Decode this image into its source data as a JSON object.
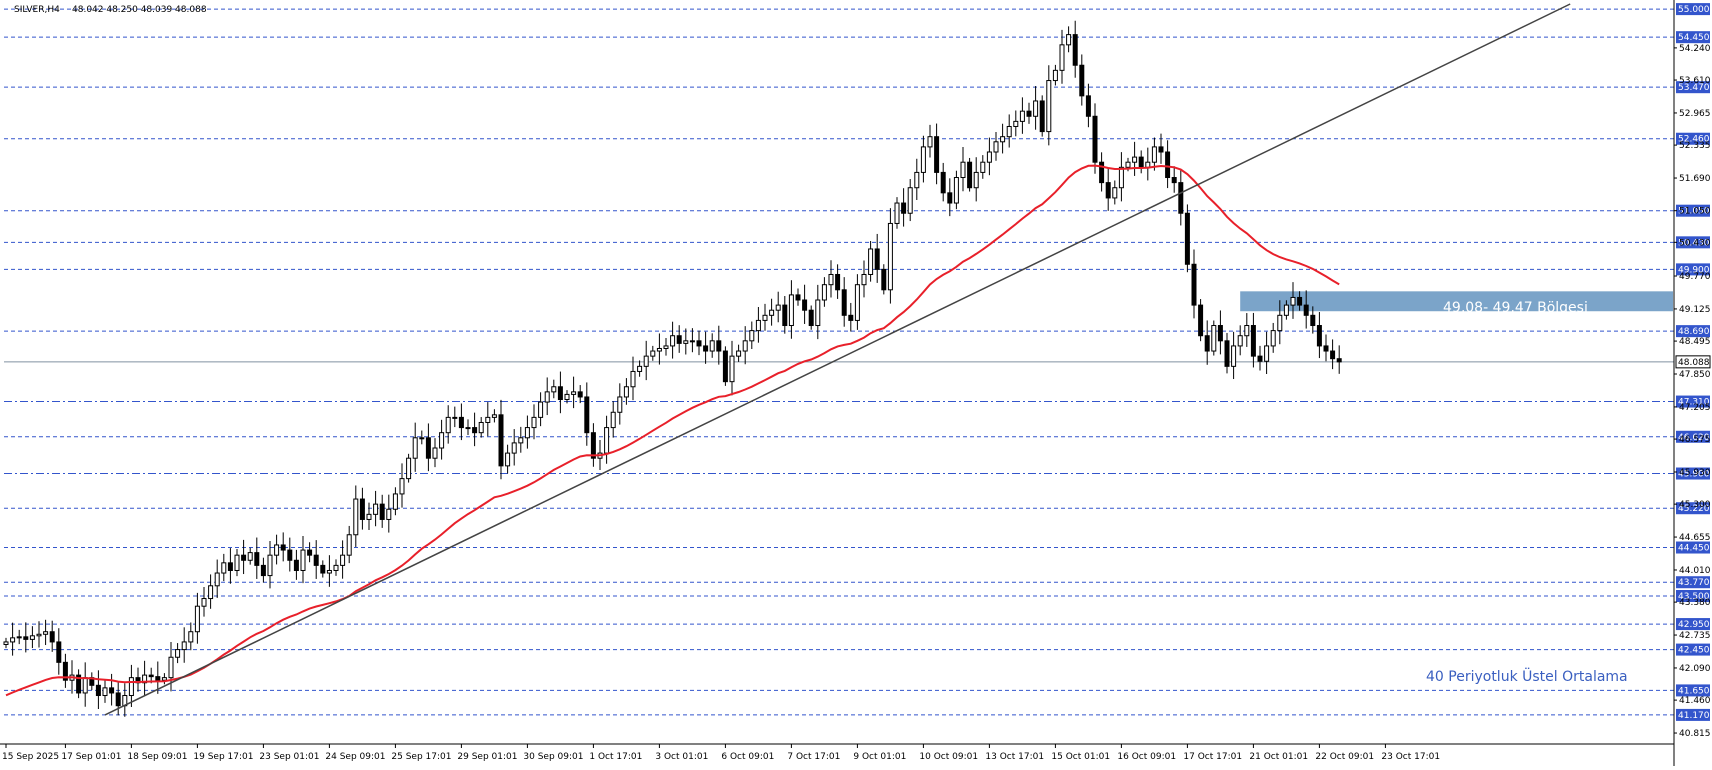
{
  "header": {
    "symbol_line": "SILVER,H4",
    "ohlc": "48.042 48.250 48.039 48.088"
  },
  "annotations": {
    "zone_label": "49,08- 49,47 Bölgesi",
    "ema_label": "40 Periyotluk Üstel Ortalama"
  },
  "colors": {
    "background": "#ffffff",
    "grid": "#3355cc",
    "tag_fill": "#3355cc",
    "ema": "#e8202a",
    "trendline": "#444444",
    "zone_fill": "#7ba4c9",
    "annotation_text": "#3a5fc0",
    "price_line": "#8090a0"
  },
  "chart_data": {
    "type": "candlestick",
    "symbol": "SILVER",
    "timeframe": "H4",
    "ylim": [
      40.6,
      55.1
    ],
    "current_price": 48.088,
    "y_ticks": [
      "54.240",
      "53.610",
      "52.965",
      "52.335",
      "51.690",
      "51.050",
      "50.430",
      "49.770",
      "49.125",
      "48.495",
      "47.850",
      "47.205",
      "46.575",
      "45.930",
      "45.300",
      "44.655",
      "44.010",
      "43.380",
      "42.735",
      "42.090",
      "41.460",
      "40.815"
    ],
    "levels": [
      {
        "value": 55.0,
        "label": "55.000",
        "style": "dashed"
      },
      {
        "value": 54.45,
        "label": "54.450",
        "style": "dashed"
      },
      {
        "value": 53.47,
        "label": "53.470",
        "style": "dashed"
      },
      {
        "value": 52.46,
        "label": "52.460",
        "style": "dashed"
      },
      {
        "value": 51.05,
        "label": "51.050",
        "style": "dashed"
      },
      {
        "value": 50.43,
        "label": "50.430",
        "style": "dashed"
      },
      {
        "value": 49.9,
        "label": "49.900",
        "style": "dashed"
      },
      {
        "value": 48.69,
        "label": "48.690",
        "style": "dashed"
      },
      {
        "value": 47.31,
        "label": "47.310",
        "style": "dashdot"
      },
      {
        "value": 46.62,
        "label": "46.620",
        "style": "dashed"
      },
      {
        "value": 45.9,
        "label": "45.900",
        "style": "dashdot"
      },
      {
        "value": 45.22,
        "label": "45.220",
        "style": "dashed"
      },
      {
        "value": 44.45,
        "label": "44.450",
        "style": "dashed"
      },
      {
        "value": 43.77,
        "label": "43.770",
        "style": "dashed"
      },
      {
        "value": 43.5,
        "label": "43.500",
        "style": "dashed"
      },
      {
        "value": 42.95,
        "label": "42.950",
        "style": "dashed"
      },
      {
        "value": 42.45,
        "label": "42.450",
        "style": "dashed"
      },
      {
        "value": 41.65,
        "label": "41.650",
        "style": "dashed"
      },
      {
        "value": 41.17,
        "label": "41.170",
        "style": "dashed"
      }
    ],
    "x_labels": [
      {
        "label": "15 Sep 2025",
        "bar": 0
      },
      {
        "label": "17 Sep 01:01",
        "bar": 9
      },
      {
        "label": "18 Sep 09:01",
        "bar": 19
      },
      {
        "label": "19 Sep 17:01",
        "bar": 29
      },
      {
        "label": "23 Sep 01:01",
        "bar": 39
      },
      {
        "label": "24 Sep 09:01",
        "bar": 49
      },
      {
        "label": "25 Sep 17:01",
        "bar": 59
      },
      {
        "label": "29 Sep 01:01",
        "bar": 69
      },
      {
        "label": "30 Sep 09:01",
        "bar": 79
      },
      {
        "label": "1 Oct 17:01",
        "bar": 89
      },
      {
        "label": "3 Oct 01:01",
        "bar": 99
      },
      {
        "label": "6 Oct 09:01",
        "bar": 109
      },
      {
        "label": "7 Oct 17:01",
        "bar": 119
      },
      {
        "label": "9 Oct 01:01",
        "bar": 129
      },
      {
        "label": "10 Oct 09:01",
        "bar": 139
      },
      {
        "label": "13 Oct 17:01",
        "bar": 149
      },
      {
        "label": "15 Oct 01:01",
        "bar": 159
      },
      {
        "label": "16 Oct 09:01",
        "bar": 169
      },
      {
        "label": "17 Oct 17:01",
        "bar": 179
      },
      {
        "label": "21 Oct 01:01",
        "bar": 189
      },
      {
        "label": "22 Oct 09:01",
        "bar": 199
      },
      {
        "label": "23 Oct 17:01",
        "bar": 209
      }
    ],
    "candles_close": [
      42.6,
      42.68,
      42.7,
      42.65,
      42.72,
      42.75,
      42.8,
      42.6,
      42.2,
      41.85,
      41.95,
      41.6,
      41.9,
      41.75,
      41.55,
      41.7,
      41.6,
      41.35,
      41.55,
      41.9,
      41.8,
      41.95,
      41.92,
      41.85,
      41.9,
      42.3,
      42.45,
      42.6,
      42.8,
      43.3,
      43.45,
      43.7,
      43.95,
      44.15,
      44.0,
      44.3,
      44.2,
      44.35,
      44.1,
      43.9,
      44.3,
      44.5,
      44.4,
      44.2,
      44.0,
      44.4,
      44.3,
      44.1,
      43.95,
      44.0,
      44.1,
      44.3,
      44.7,
      45.4,
      45.0,
      45.1,
      45.3,
      45.0,
      45.2,
      45.5,
      45.8,
      46.2,
      46.6,
      46.6,
      46.2,
      46.4,
      46.7,
      47.0,
      47.0,
      46.8,
      46.8,
      46.7,
      46.9,
      47.0,
      47.05,
      46.05,
      46.3,
      46.5,
      46.6,
      46.8,
      47.0,
      47.3,
      47.5,
      47.6,
      47.35,
      47.45,
      47.5,
      47.4,
      46.7,
      46.2,
      46.3,
      46.8,
      47.1,
      47.4,
      47.6,
      47.9,
      48.0,
      48.2,
      48.3,
      48.35,
      48.4,
      48.6,
      48.45,
      48.5,
      48.5,
      48.4,
      48.3,
      48.5,
      48.3,
      47.7,
      48.2,
      48.3,
      48.5,
      48.7,
      48.9,
      49.0,
      49.1,
      49.2,
      48.8,
      49.4,
      49.3,
      49.1,
      48.8,
      49.3,
      49.6,
      49.8,
      49.5,
      49.0,
      48.9,
      49.6,
      49.8,
      50.3,
      49.9,
      49.5,
      50.8,
      51.2,
      51.0,
      51.5,
      51.8,
      52.3,
      52.5,
      51.8,
      51.4,
      51.2,
      51.7,
      52.0,
      51.5,
      51.8,
      52.0,
      52.2,
      52.4,
      52.5,
      52.7,
      52.8,
      53.0,
      52.9,
      53.2,
      52.6,
      53.6,
      53.8,
      54.3,
      54.5,
      53.9,
      53.3,
      52.9,
      52.0,
      51.6,
      51.3,
      51.5,
      51.9,
      52.0,
      52.1,
      51.9,
      52.0,
      52.3,
      52.2,
      51.7,
      51.6,
      51.0,
      50.0,
      49.2,
      48.6,
      48.3,
      48.8,
      48.5,
      48.0,
      48.4,
      48.6,
      48.8,
      48.2,
      48.1,
      48.4,
      48.7,
      49.0,
      49.2,
      49.35,
      49.2,
      49.0,
      48.8,
      48.4,
      48.3,
      48.15,
      48.088
    ],
    "ema40_start": 41.5,
    "trendline": {
      "from_bar": 15,
      "from_value": 41.17,
      "to_bar": 186,
      "to_value": 51.9
    }
  }
}
